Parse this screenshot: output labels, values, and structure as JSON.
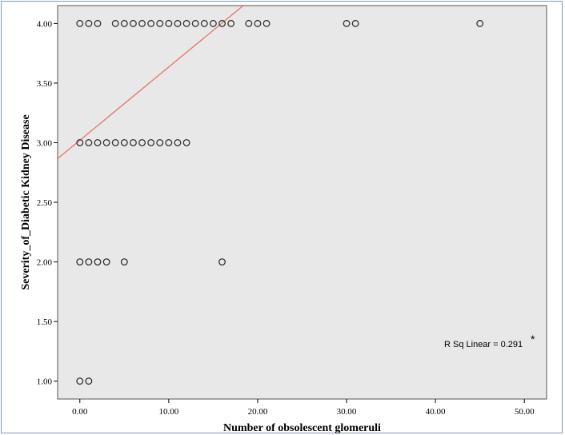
{
  "chart_data": {
    "type": "scatter",
    "title": "",
    "xlabel": "Number of obsolescent glomeruli",
    "ylabel": "Severity_of_Diabetic Kidney Disease",
    "xlim": [
      -2.5,
      52.5
    ],
    "ylim": [
      0.85,
      4.15
    ],
    "xticks": [
      0,
      10,
      20,
      30,
      40,
      50
    ],
    "yticks": [
      1,
      1.5,
      2,
      2.5,
      3,
      3.5,
      4
    ],
    "xtick_labels": [
      "0.00",
      "10.00",
      "20.00",
      "30.00",
      "40.00",
      "50.00"
    ],
    "ytick_labels": [
      "1.00",
      "1.50",
      "2.00",
      "2.50",
      "3.00",
      "3.50",
      "4.00"
    ],
    "grid": false,
    "plot_background": "#e8e8e8",
    "marker_color": "#333333",
    "fit_line_color": "#e8736c",
    "points": [
      {
        "x": 0,
        "y": 4
      },
      {
        "x": 1,
        "y": 4
      },
      {
        "x": 2,
        "y": 4
      },
      {
        "x": 4,
        "y": 4
      },
      {
        "x": 5,
        "y": 4
      },
      {
        "x": 6,
        "y": 4
      },
      {
        "x": 7,
        "y": 4
      },
      {
        "x": 8,
        "y": 4
      },
      {
        "x": 9,
        "y": 4
      },
      {
        "x": 10,
        "y": 4
      },
      {
        "x": 11,
        "y": 4
      },
      {
        "x": 12,
        "y": 4
      },
      {
        "x": 13,
        "y": 4
      },
      {
        "x": 14,
        "y": 4
      },
      {
        "x": 15,
        "y": 4
      },
      {
        "x": 16,
        "y": 4
      },
      {
        "x": 17,
        "y": 4
      },
      {
        "x": 19,
        "y": 4
      },
      {
        "x": 20,
        "y": 4
      },
      {
        "x": 21,
        "y": 4
      },
      {
        "x": 30,
        "y": 4
      },
      {
        "x": 31,
        "y": 4
      },
      {
        "x": 45,
        "y": 4
      },
      {
        "x": 0,
        "y": 3
      },
      {
        "x": 1,
        "y": 3
      },
      {
        "x": 2,
        "y": 3
      },
      {
        "x": 3,
        "y": 3
      },
      {
        "x": 4,
        "y": 3
      },
      {
        "x": 5,
        "y": 3
      },
      {
        "x": 6,
        "y": 3
      },
      {
        "x": 7,
        "y": 3
      },
      {
        "x": 8,
        "y": 3
      },
      {
        "x": 9,
        "y": 3
      },
      {
        "x": 10,
        "y": 3
      },
      {
        "x": 11,
        "y": 3
      },
      {
        "x": 12,
        "y": 3
      },
      {
        "x": 0,
        "y": 2
      },
      {
        "x": 1,
        "y": 2
      },
      {
        "x": 2,
        "y": 2
      },
      {
        "x": 3,
        "y": 2
      },
      {
        "x": 5,
        "y": 2
      },
      {
        "x": 16,
        "y": 2
      },
      {
        "x": 0,
        "y": 1
      },
      {
        "x": 1,
        "y": 1
      }
    ],
    "fit_line": {
      "intercept": 3.02,
      "slope": 0.0615
    },
    "annotation": {
      "text": "R Sq Linear = 0.291",
      "marker": "*"
    }
  }
}
